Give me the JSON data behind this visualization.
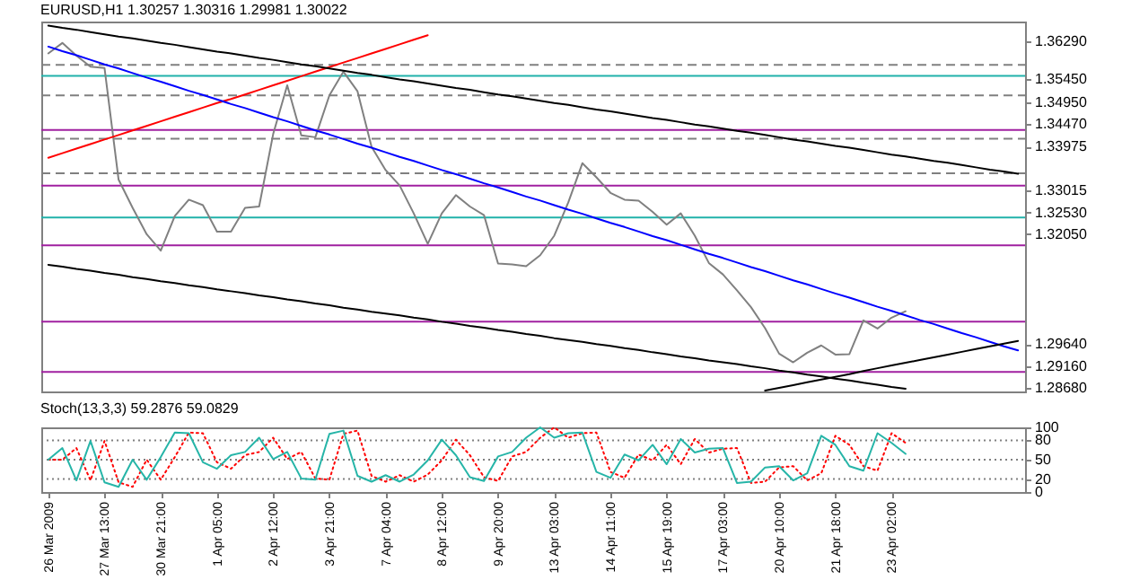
{
  "chart_data": [
    {
      "type": "line",
      "title": "EURUSD,H1 1.30257 1.30316 1.29981 1.30022",
      "tick_labels": "y",
      "ylim": [
        1.286,
        1.3672
      ],
      "yticks": [
        {
          "value": 1.2868,
          "label": "1.28680"
        },
        {
          "value": 1.2916,
          "label": "1.29160"
        },
        {
          "value": 1.2964,
          "label": "1.29640"
        },
        {
          "value": 1.3205,
          "label": "1.32050"
        },
        {
          "value": 1.3253,
          "label": "1.32530"
        },
        {
          "value": 1.33015,
          "label": "1.33015"
        },
        {
          "value": 1.33975,
          "label": "1.33975"
        },
        {
          "value": 1.3447,
          "label": "1.34470"
        },
        {
          "value": 1.3495,
          "label": "1.34950"
        },
        {
          "value": 1.3545,
          "label": "1.35450"
        },
        {
          "value": 1.3629,
          "label": "1.36290"
        }
      ],
      "ref_lines": [
        {
          "axis": "y",
          "value": 1.3577,
          "color": "#808080",
          "line_style": "dashed"
        },
        {
          "axis": "y",
          "value": 1.351,
          "color": "#808080",
          "line_style": "dashed"
        },
        {
          "axis": "y",
          "value": 1.3415,
          "color": "#808080",
          "line_style": "dashed"
        },
        {
          "axis": "y",
          "value": 1.3339,
          "color": "#808080",
          "line_style": "dashed"
        },
        {
          "axis": "y",
          "value": 1.3434,
          "color": "#a020a0",
          "line_style": "solid"
        },
        {
          "axis": "y",
          "value": 1.3312,
          "color": "#a020a0",
          "line_style": "solid"
        },
        {
          "axis": "y",
          "value": 1.3181,
          "color": "#a020a0",
          "line_style": "solid"
        },
        {
          "axis": "y",
          "value": 1.3013,
          "color": "#a020a0",
          "line_style": "solid"
        },
        {
          "axis": "y",
          "value": 1.2903,
          "color": "#a020a0",
          "line_style": "solid"
        },
        {
          "axis": "y",
          "value": 1.3553,
          "color": "#20b2aa",
          "line_style": "solid"
        },
        {
          "axis": "y",
          "value": 1.3242,
          "color": "#20b2aa",
          "line_style": "solid"
        }
      ],
      "series": [
        {
          "color": "#000000",
          "values": [
            1.3663,
            1.3658,
            1.3654,
            1.3649,
            1.3644,
            1.3639,
            1.3635,
            1.363,
            1.3625,
            1.3621,
            1.3616,
            1.3611,
            1.3606,
            1.3602,
            1.3597,
            1.3592,
            1.3588,
            1.3583,
            1.3578,
            1.3574,
            1.3569,
            1.3564,
            1.3559,
            1.3555,
            1.355,
            1.3545,
            1.3541,
            1.3536,
            1.3531,
            1.3526,
            1.3522,
            1.3517,
            1.3512,
            1.3508,
            1.3503,
            1.3498,
            1.3493,
            1.3489,
            1.3484,
            1.3479,
            1.3475,
            1.347,
            1.3465,
            1.346,
            1.3456,
            1.3451,
            1.3446,
            1.3442,
            1.3437,
            1.3432,
            1.3428,
            1.3423,
            1.3418,
            1.3413,
            1.3409,
            1.3404,
            1.3399,
            1.3395,
            1.339,
            1.3385,
            1.338,
            1.3376,
            1.3371,
            1.3366,
            1.3362,
            1.3357,
            1.3352,
            1.3347,
            1.3343,
            1.3338
          ]
        },
        {
          "color": "#000000",
          "values": [
            1.3138,
            1.3134,
            1.3129,
            1.3125,
            1.312,
            1.3116,
            1.3111,
            1.3107,
            1.3102,
            1.3098,
            1.3093,
            1.3089,
            1.3084,
            1.308,
            1.3076,
            1.3071,
            1.3067,
            1.3062,
            1.3058,
            1.3053,
            1.3049,
            1.3044,
            1.304,
            1.3035,
            1.3031,
            1.3027,
            1.3022,
            1.3018,
            1.3013,
            1.3009,
            1.3004,
            1.3,
            1.2995,
            1.2991,
            1.2986,
            1.2982,
            1.2977,
            1.2973,
            1.2969,
            1.2964,
            1.296,
            1.2955,
            1.2951,
            1.2946,
            1.2942,
            1.2937,
            1.2933,
            1.2928,
            1.2924,
            1.292,
            1.2915,
            1.2911,
            1.2906,
            1.2902,
            1.2897,
            1.2893,
            1.2888,
            1.2884,
            1.2879,
            1.2875,
            1.287,
            1.2866,
            null,
            null,
            null,
            null,
            null,
            null,
            null,
            null
          ]
        },
        {
          "color": "#000000",
          "values": [
            null,
            null,
            null,
            null,
            null,
            null,
            null,
            null,
            null,
            null,
            null,
            null,
            null,
            null,
            null,
            null,
            null,
            null,
            null,
            null,
            null,
            null,
            null,
            null,
            null,
            null,
            null,
            null,
            null,
            null,
            null,
            null,
            null,
            null,
            null,
            null,
            null,
            null,
            null,
            null,
            null,
            null,
            null,
            null,
            null,
            null,
            null,
            null,
            null,
            null,
            null,
            1.2862,
            1.2868,
            1.2874,
            1.288,
            1.2886,
            1.2892,
            1.2898,
            1.2905,
            1.2911,
            1.2917,
            1.2923,
            1.2929,
            1.2935,
            1.2941,
            1.2947,
            1.2953,
            1.2959,
            1.2965,
            1.2971
          ]
        },
        {
          "color": "#0000ff",
          "values": [
            1.3617,
            1.3607,
            1.3598,
            1.3588,
            1.3578,
            1.3569,
            1.3559,
            1.3549,
            1.354,
            1.353,
            1.352,
            1.3511,
            1.3501,
            1.3491,
            1.3482,
            1.3472,
            1.3462,
            1.3453,
            1.3443,
            1.3433,
            1.3424,
            1.3414,
            1.3404,
            1.3395,
            1.3385,
            1.3375,
            1.3366,
            1.3356,
            1.3346,
            1.3337,
            1.3327,
            1.3317,
            1.3308,
            1.3298,
            1.3288,
            1.3279,
            1.3269,
            1.3259,
            1.325,
            1.324,
            1.323,
            1.3221,
            1.3211,
            1.3201,
            1.3192,
            1.3182,
            1.3172,
            1.3162,
            1.3153,
            1.3143,
            1.3133,
            1.3124,
            1.3114,
            1.3104,
            1.3095,
            1.3085,
            1.3075,
            1.3066,
            1.3056,
            1.3046,
            1.3037,
            1.3027,
            1.3017,
            1.3008,
            1.2998,
            1.2988,
            1.2979,
            1.2969,
            1.2959,
            1.295
          ]
        },
        {
          "color": "#ff0000",
          "values": [
            1.3373,
            1.3383,
            1.3393,
            1.3403,
            1.3413,
            1.3423,
            1.3433,
            1.3443,
            1.3453,
            1.3463,
            1.3473,
            1.3483,
            1.3493,
            1.3502,
            1.3512,
            1.3522,
            1.3532,
            1.3542,
            1.3552,
            1.3562,
            1.3572,
            1.3582,
            1.3592,
            1.3602,
            1.3612,
            1.3622,
            1.3632,
            1.3642,
            null,
            null,
            null,
            null,
            null,
            null,
            null,
            null,
            null,
            null,
            null,
            null,
            null,
            null,
            null,
            null,
            null,
            null,
            null,
            null,
            null,
            null,
            null,
            null,
            null,
            null,
            null,
            null,
            null,
            null,
            null,
            null,
            null,
            null,
            null,
            null,
            null,
            null,
            null,
            null,
            null,
            null
          ]
        },
        {
          "color": "#808080",
          "values": [
            1.3602,
            1.3625,
            1.3597,
            1.3573,
            1.357,
            1.3325,
            1.3263,
            1.3205,
            1.3169,
            1.3245,
            1.3281,
            1.3269,
            1.3211,
            1.3211,
            1.3263,
            1.3266,
            1.3425,
            1.3532,
            1.3422,
            1.3418,
            1.351,
            1.3562,
            1.3519,
            1.3397,
            1.3346,
            1.3312,
            1.3251,
            1.3184,
            1.3251,
            1.3291,
            1.3266,
            1.3247,
            1.3141,
            1.3139,
            1.3135,
            1.3159,
            1.3202,
            1.3275,
            1.3361,
            1.333,
            1.3296,
            1.3281,
            1.3279,
            1.3254,
            1.3226,
            1.3251,
            1.3202,
            1.3142,
            1.3117,
            1.3082,
            1.3045,
            1.2999,
            1.2943,
            1.2924,
            1.2945,
            1.2961,
            1.2941,
            1.2942,
            1.3016,
            1.2998,
            1.3022,
            1.3036,
            null,
            null,
            null,
            null,
            null,
            null,
            null,
            null
          ]
        }
      ]
    },
    {
      "type": "line",
      "title": "Stoch(13,3,3) 59.2876 59.0829",
      "ylim": [
        0,
        100
      ],
      "yticks": [
        0,
        20,
        50,
        80,
        100
      ],
      "categories": [
        "26 Mar 2009",
        null,
        null,
        null,
        "27 Mar 13:00",
        null,
        null,
        null,
        "30 Mar 21:00",
        null,
        null,
        null,
        "1 Apr 05:00",
        null,
        null,
        null,
        "2 Apr 12:00",
        null,
        null,
        null,
        "3 Apr 21:00",
        null,
        null,
        null,
        "7 Apr 04:00",
        null,
        null,
        null,
        "8 Apr 12:00",
        null,
        null,
        null,
        "9 Apr 20:00",
        null,
        null,
        null,
        "13 Apr 03:00",
        null,
        null,
        null,
        "14 Apr 11:00",
        null,
        null,
        null,
        "15 Apr 19:00",
        null,
        null,
        null,
        "17 Apr 03:00",
        null,
        null,
        null,
        "20 Apr 10:00",
        null,
        null,
        null,
        "21 Apr 18:00",
        null,
        null,
        null,
        "23 Apr 02:00",
        null,
        null,
        null,
        null,
        null,
        null,
        null,
        null,
        null
      ],
      "ref_lines": [
        {
          "axis": "y",
          "value": 20,
          "color": "#808080",
          "line_style": "dotted"
        },
        {
          "axis": "y",
          "value": 50,
          "color": "#808080",
          "line_style": "dotted"
        },
        {
          "axis": "y",
          "value": 80,
          "color": "#808080",
          "line_style": "dotted"
        }
      ],
      "series": [
        {
          "color": "#26b5a8",
          "values": [
            50,
            68,
            18,
            79,
            15,
            8,
            50,
            19,
            54,
            92,
            91,
            46,
            36,
            57,
            62,
            84,
            51,
            62,
            21,
            19,
            90,
            95,
            25,
            16,
            26,
            16,
            27,
            49,
            81,
            57,
            23,
            17,
            55,
            62,
            84,
            100,
            84,
            91,
            92,
            31,
            22,
            58,
            49,
            73,
            43,
            82,
            61,
            67,
            68,
            14,
            16,
            38,
            40,
            18,
            29,
            87,
            73,
            40,
            33,
            91,
            76,
            59,
            null,
            null,
            null,
            null,
            null,
            null,
            null,
            null
          ]
        },
        {
          "color": "#ff0000",
          "line_style": "dotted",
          "values": [
            50,
            50,
            68,
            18,
            79,
            15,
            8,
            50,
            19,
            54,
            92,
            91,
            46,
            36,
            57,
            62,
            84,
            51,
            62,
            21,
            19,
            90,
            95,
            25,
            16,
            26,
            16,
            27,
            49,
            81,
            57,
            23,
            17,
            55,
            62,
            84,
            100,
            84,
            91,
            92,
            31,
            22,
            58,
            49,
            73,
            43,
            82,
            61,
            67,
            68,
            14,
            16,
            38,
            40,
            18,
            29,
            87,
            73,
            40,
            33,
            91,
            76,
            null,
            null,
            null,
            null,
            null,
            null,
            null,
            null
          ]
        }
      ]
    }
  ]
}
